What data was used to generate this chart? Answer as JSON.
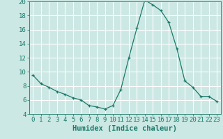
{
  "x": [
    0,
    1,
    2,
    3,
    4,
    5,
    6,
    7,
    8,
    9,
    10,
    11,
    12,
    13,
    14,
    15,
    16,
    17,
    18,
    19,
    20,
    21,
    22,
    23
  ],
  "y": [
    9.5,
    8.3,
    7.8,
    7.2,
    6.8,
    6.3,
    6.0,
    5.2,
    5.0,
    4.7,
    5.2,
    7.5,
    12.0,
    16.2,
    20.2,
    19.5,
    18.7,
    17.0,
    13.3,
    8.7,
    7.8,
    6.5,
    6.5,
    5.8
  ],
  "line_color": "#1a7a6a",
  "marker": "+",
  "xlabel": "Humidex (Indice chaleur)",
  "ylim": [
    4,
    20
  ],
  "xlim": [
    -0.5,
    23.5
  ],
  "yticks": [
    4,
    6,
    8,
    10,
    12,
    14,
    16,
    18,
    20
  ],
  "xticks": [
    0,
    1,
    2,
    3,
    4,
    5,
    6,
    7,
    8,
    9,
    10,
    11,
    12,
    13,
    14,
    15,
    16,
    17,
    18,
    19,
    20,
    21,
    22,
    23
  ],
  "background_color": "#cce8e4",
  "grid_color": "#ffffff",
  "tick_color": "#1a7a6a",
  "label_color": "#1a7a6a",
  "xlabel_fontsize": 7.5,
  "tick_fontsize": 6.5
}
